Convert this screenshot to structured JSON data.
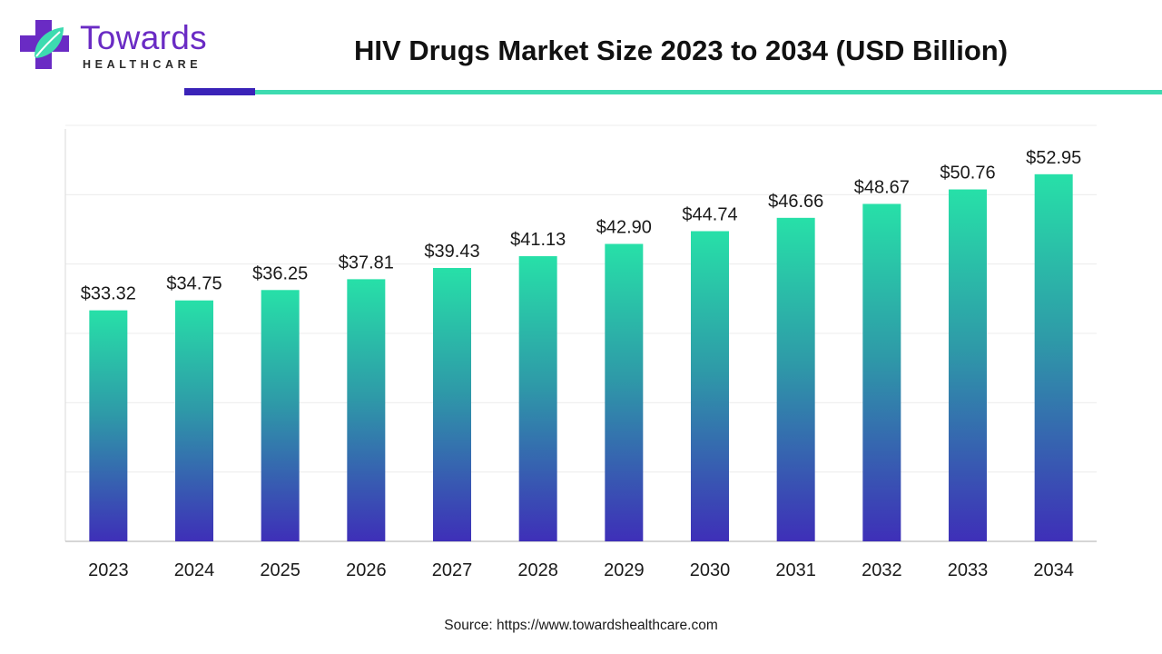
{
  "header": {
    "title": "HIV Drugs Market Size 2023 to 2034 (USD Billion)",
    "logo_name": "Towards",
    "logo_sub": "HEALTHCARE"
  },
  "colors": {
    "bar_top": "#27e0a8",
    "bar_mid": "#2e9aa8",
    "bar_bottom": "#3e2fb8",
    "accent_dark": "#3a23b8",
    "accent_teal": "#3ddbb0",
    "brand_purple": "#6a2bc4"
  },
  "chart_data": {
    "type": "bar",
    "title": "HIV Drugs Market Size 2023 to 2034 (USD Billion)",
    "categories": [
      "2023",
      "2024",
      "2025",
      "2026",
      "2027",
      "2028",
      "2029",
      "2030",
      "2031",
      "2032",
      "2033",
      "2034"
    ],
    "values": [
      33.32,
      34.75,
      36.25,
      37.81,
      39.43,
      41.13,
      42.9,
      44.74,
      46.66,
      48.67,
      50.76,
      52.95
    ],
    "value_labels": [
      "$33.32",
      "$34.75",
      "$36.25",
      "$37.81",
      "$39.43",
      "$41.13",
      "$42.90",
      "$44.74",
      "$46.66",
      "$48.67",
      "$50.76",
      "$52.95"
    ],
    "xlabel": "",
    "ylabel": "",
    "ylim": [
      0,
      60
    ],
    "grid": true,
    "legend": "none"
  },
  "footer": {
    "source": "Source: https://www.towardshealthcare.com"
  }
}
